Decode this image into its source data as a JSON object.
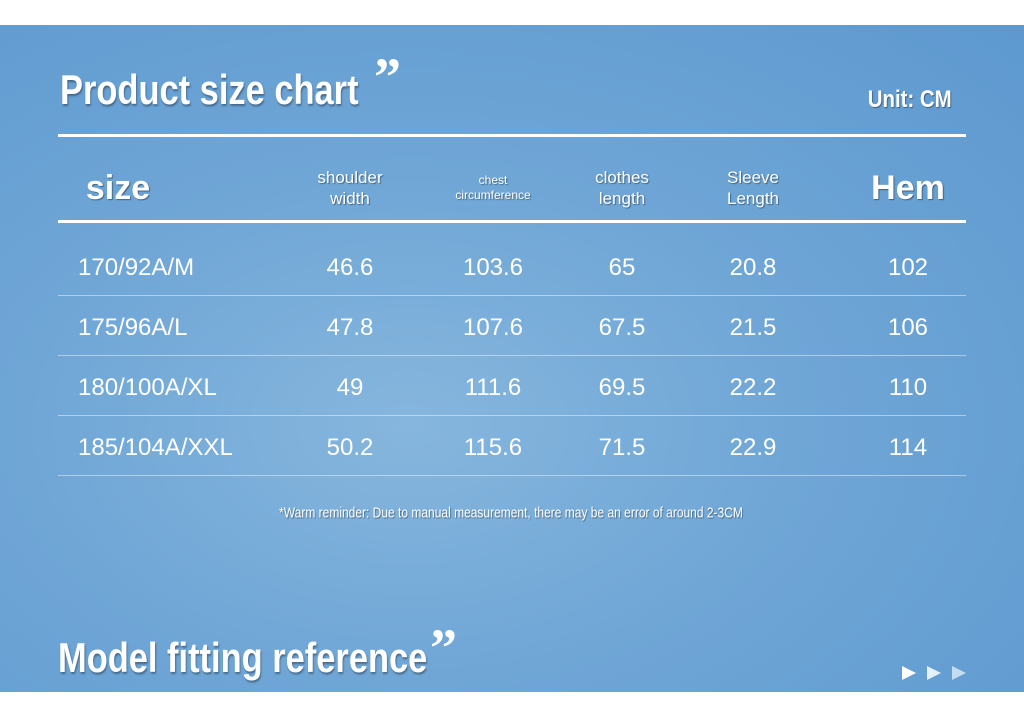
{
  "header": {
    "title": "Product size chart",
    "unit": "Unit: CM"
  },
  "table": {
    "headers": [
      [
        "size"
      ],
      [
        "shoulder",
        "width"
      ],
      [
        "chest",
        "circumference"
      ],
      [
        "clothes",
        "length"
      ],
      [
        "Sleeve",
        "Length"
      ],
      [
        "Hem"
      ]
    ],
    "rows": [
      [
        "170/92A/M",
        46.6,
        103.6,
        65,
        20.8,
        102
      ],
      [
        "175/96A/L",
        47.8,
        107.6,
        67.5,
        21.5,
        106
      ],
      [
        "180/100A/XL",
        49,
        111.6,
        69.5,
        22.2,
        110
      ],
      [
        "185/104A/XXL",
        50.2,
        115.6,
        71.5,
        22.9,
        114
      ]
    ]
  },
  "note": "*Warm reminder: Due to manual measurement, there may be an error of around 2-3CM",
  "section_title": "Model fitting reference"
}
